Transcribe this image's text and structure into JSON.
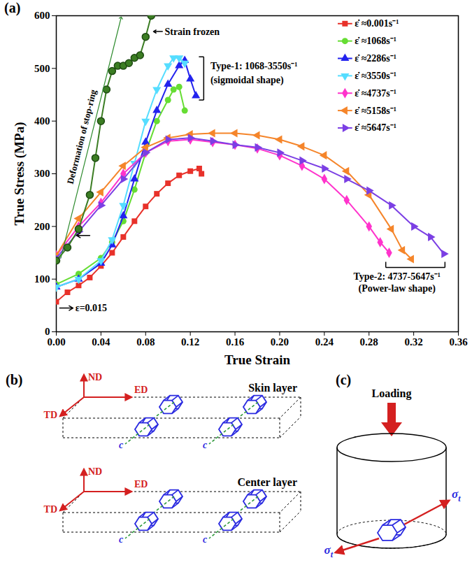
{
  "chart_data": {
    "type": "line",
    "panel": "(a)",
    "xlabel": "True Strain",
    "ylabel": "True Stress (MPa)",
    "xlim": [
      0,
      0.36
    ],
    "xticks": [
      {
        "value": 0,
        "label": "0.00"
      },
      {
        "value": 0.04,
        "label": "0.04"
      },
      {
        "value": 0.08,
        "label": "0.08"
      },
      {
        "value": 0.12,
        "label": "0.12"
      },
      {
        "value": 0.16,
        "label": "0.16"
      },
      {
        "value": 0.2,
        "label": "0.20"
      },
      {
        "value": 0.24,
        "label": "0.24"
      },
      {
        "value": 0.28,
        "label": "0.28"
      },
      {
        "value": 0.32,
        "label": "0.32"
      },
      {
        "value": 0.36,
        "label": "0.36"
      }
    ],
    "ylim": [
      0,
      600
    ],
    "yticks": [
      0,
      100,
      200,
      300,
      400,
      500,
      600
    ],
    "legend": "top-right",
    "series": [
      {
        "name": "ε̇ ≈0.001s⁻¹",
        "color": "#e8312a",
        "marker": "square",
        "line_style": "solid",
        "x": [
          0,
          0.01,
          0.02,
          0.03,
          0.04,
          0.05,
          0.06,
          0.07,
          0.08,
          0.09,
          0.1,
          0.11,
          0.12,
          0.128,
          0.13
        ],
        "values": [
          57,
          75,
          88,
          103,
          125,
          150,
          180,
          210,
          238,
          262,
          282,
          297,
          305,
          310,
          300
        ]
      },
      {
        "name": "ε̇ ≈1068s⁻¹",
        "color": "#66dd33",
        "marker": "circle",
        "line_style": "solid",
        "x": [
          0,
          0.02,
          0.04,
          0.05,
          0.06,
          0.07,
          0.08,
          0.09,
          0.1,
          0.105,
          0.11,
          0.115
        ],
        "values": [
          90,
          110,
          140,
          170,
          210,
          270,
          340,
          400,
          440,
          460,
          465,
          420
        ]
      },
      {
        "name": "ε̇ ≈2286s⁻¹",
        "color": "#2222ee",
        "marker": "triangle-up",
        "line_style": "solid",
        "x": [
          0,
          0.02,
          0.04,
          0.05,
          0.06,
          0.07,
          0.08,
          0.09,
          0.1,
          0.11,
          0.115,
          0.12,
          0.125
        ],
        "values": [
          85,
          100,
          130,
          165,
          220,
          290,
          360,
          420,
          470,
          505,
          515,
          480,
          448
        ]
      },
      {
        "name": "ε̇ ≈3550s⁻¹",
        "color": "#55ddff",
        "marker": "triangle-down",
        "line_style": "solid",
        "x": [
          0,
          0.02,
          0.04,
          0.05,
          0.06,
          0.07,
          0.08,
          0.09,
          0.1,
          0.105,
          0.11,
          0.115
        ],
        "values": [
          85,
          100,
          135,
          175,
          240,
          320,
          400,
          460,
          505,
          520,
          520,
          510
        ]
      },
      {
        "name": "ε̇ ≈4737s⁻¹",
        "color": "#ff33cc",
        "marker": "diamond",
        "line_style": "solid",
        "x": [
          0,
          0.02,
          0.04,
          0.06,
          0.08,
          0.1,
          0.12,
          0.14,
          0.16,
          0.18,
          0.2,
          0.22,
          0.24,
          0.26,
          0.28,
          0.29,
          0.298
        ],
        "values": [
          145,
          200,
          245,
          300,
          340,
          362,
          365,
          360,
          355,
          348,
          335,
          315,
          290,
          250,
          200,
          170,
          150
        ]
      },
      {
        "name": "ε̇ ≈5158s⁻¹",
        "color": "#f5852a",
        "marker": "triangle-left",
        "line_style": "solid",
        "x": [
          0,
          0.02,
          0.04,
          0.06,
          0.08,
          0.1,
          0.12,
          0.14,
          0.16,
          0.18,
          0.2,
          0.22,
          0.24,
          0.26,
          0.28,
          0.3,
          0.31,
          0.318
        ],
        "values": [
          145,
          215,
          265,
          315,
          350,
          368,
          375,
          377,
          377,
          373,
          365,
          352,
          335,
          305,
          260,
          195,
          155,
          138
        ]
      },
      {
        "name": "ε̇ ≈5647s⁻¹",
        "color": "#7b3fe4",
        "marker": "triangle-right",
        "line_style": "solid",
        "x": [
          0,
          0.02,
          0.04,
          0.06,
          0.08,
          0.1,
          0.12,
          0.14,
          0.16,
          0.18,
          0.2,
          0.22,
          0.24,
          0.26,
          0.28,
          0.3,
          0.32,
          0.335,
          0.347
        ],
        "values": [
          140,
          190,
          240,
          290,
          340,
          365,
          368,
          362,
          355,
          350,
          340,
          325,
          310,
          290,
          268,
          240,
          200,
          180,
          148
        ]
      },
      {
        "color": "#3b7d23",
        "marker": "circle",
        "line_style": "solid",
        "x": [
          0,
          0.01,
          0.02,
          0.03,
          0.035,
          0.04,
          0.045,
          0.05,
          0.055,
          0.06,
          0.065,
          0.07,
          0.075,
          0.08,
          0.085
        ],
        "values": [
          135,
          160,
          195,
          260,
          330,
          400,
          460,
          495,
          505,
          505,
          510,
          520,
          525,
          560,
          600
        ]
      },
      {
        "color": "#2e8b2e",
        "marker": "arrow",
        "line_style": "solid",
        "x": [
          0.004,
          0.058
        ],
        "values": [
          140,
          596
        ]
      }
    ],
    "annotations": [
      {
        "text": "Strain frozen",
        "x": 0.097,
        "y": 570,
        "arrow": {
          "x1": 0.095,
          "y1": 570,
          "x2": 0.087,
          "y2": 570
        }
      },
      {
        "text": "Deformation of stop-ring",
        "x": 0.031,
        "y": 370,
        "along": true
      },
      {
        "text": "Type-1: 1068-3550s⁻¹",
        "x": 0.138,
        "y": 505
      },
      {
        "text": "(sigmoidal shape)",
        "x": 0.138,
        "y": 478
      },
      {
        "text": "Type-2: 4737-5647s⁻¹",
        "x": 0.305,
        "y": 105
      },
      {
        "text": "(Power-law shape)",
        "x": 0.305,
        "y": 82
      },
      {
        "text": "ε=0.015",
        "x": 0.017,
        "y": 45,
        "arrow": {
          "x1": 0.003,
          "y1": 45,
          "x2": 0.015,
          "y2": 45
        }
      }
    ],
    "arrows": [
      {
        "x1": 0.03,
        "y1": 183,
        "x2": 0.018,
        "y2": 183
      }
    ],
    "brackets": [
      {
        "x": 0.132,
        "y1": 440,
        "y2": 522
      },
      {
        "y": 122,
        "x1": 0.295,
        "x2": 0.348
      }
    ]
  },
  "diagrams": {
    "b": {
      "panel": "(b)",
      "layers": [
        "Skin layer",
        "Center layer"
      ],
      "axes": {
        "up": "ND",
        "right": "ED",
        "depth": "TD"
      },
      "c_axis": "c"
    },
    "c": {
      "panel": "(c)",
      "load": "Loading",
      "stress": "σt",
      "c_axis": "c"
    }
  }
}
